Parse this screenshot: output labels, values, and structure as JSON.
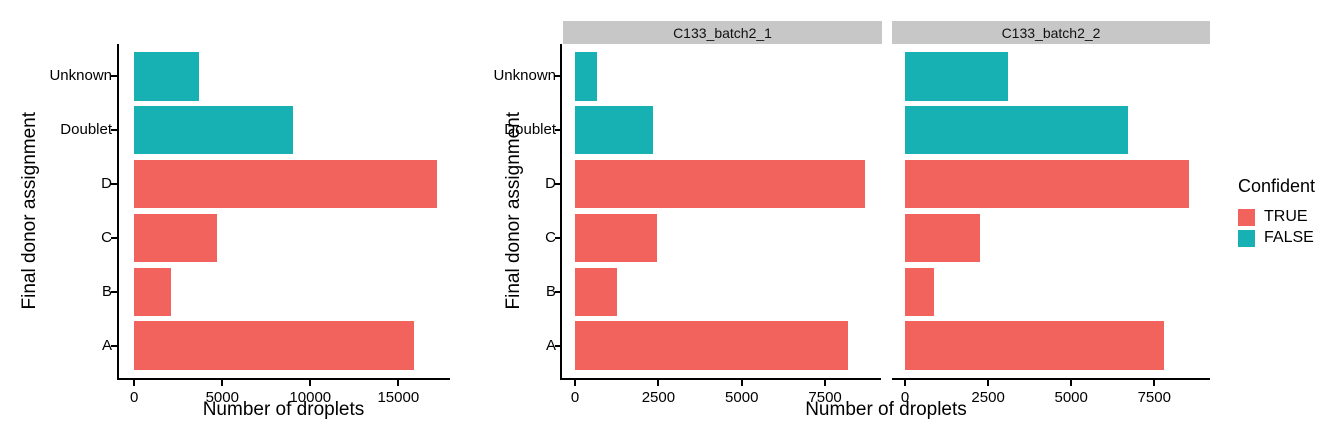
{
  "figure": {
    "y_axis_title": "Final donor assignment",
    "x_axis_title": "Number of droplets",
    "categories": [
      "Unknown",
      "Doublet",
      "D",
      "C",
      "B",
      "A"
    ],
    "confident_by_category": [
      false,
      false,
      true,
      true,
      true,
      true
    ],
    "colors": {
      "confident_true": "#F2635D",
      "confident_false": "#18B1B3",
      "strip_background": "#C7C7C7",
      "axis_line": "#000000",
      "text": "#000000",
      "background": "#FFFFFF"
    },
    "legend": {
      "title": "Confident",
      "items": [
        {
          "label": "TRUE",
          "color_key": "confident_true"
        },
        {
          "label": "FALSE",
          "color_key": "confident_false"
        }
      ]
    }
  },
  "chart_data": [
    {
      "type": "bar",
      "orientation": "horizontal",
      "panel_label": "",
      "title": "",
      "categories": [
        "Unknown",
        "Doublet",
        "D",
        "C",
        "B",
        "A"
      ],
      "values": [
        3700,
        9000,
        17200,
        4700,
        2100,
        15900
      ],
      "color_keys": [
        "confident_false",
        "confident_false",
        "confident_true",
        "confident_true",
        "confident_true",
        "confident_true"
      ],
      "xlabel": "Number of droplets",
      "ylabel": "Final donor assignment",
      "x_ticks": [
        0,
        5000,
        10000,
        15000
      ],
      "xlim": [
        0,
        17900
      ],
      "axis_zero_frac": 0.046,
      "axis_span_units": 18800,
      "grid": false,
      "legend_position": "none"
    },
    {
      "type": "bar",
      "orientation": "horizontal",
      "panel_label": "C133_batch2_1",
      "categories": [
        "Unknown",
        "Doublet",
        "D",
        "C",
        "B",
        "A"
      ],
      "values": [
        650,
        2350,
        8700,
        2450,
        1250,
        8200
      ],
      "color_keys": [
        "confident_false",
        "confident_false",
        "confident_true",
        "confident_true",
        "confident_true",
        "confident_true"
      ],
      "xlabel": "Number of droplets",
      "ylabel": "Final donor assignment",
      "x_ticks": [
        0,
        2500,
        5000,
        7500
      ],
      "xlim": [
        0,
        9100
      ],
      "axis_zero_frac": 0.041,
      "axis_span_units": 9570,
      "grid": false,
      "legend_position": "right"
    },
    {
      "type": "bar",
      "orientation": "horizontal",
      "panel_label": "C133_batch2_2",
      "categories": [
        "Unknown",
        "Doublet",
        "D",
        "C",
        "B",
        "A"
      ],
      "values": [
        3100,
        6700,
        8550,
        2250,
        870,
        7800
      ],
      "color_keys": [
        "confident_false",
        "confident_false",
        "confident_true",
        "confident_true",
        "confident_true",
        "confident_true"
      ],
      "xlabel": "Number of droplets",
      "ylabel": "Final donor assignment",
      "x_ticks": [
        0,
        2500,
        5000,
        7500
      ],
      "xlim": [
        0,
        9100
      ],
      "axis_zero_frac": 0.041,
      "axis_span_units": 9570,
      "grid": false,
      "legend_position": "right"
    }
  ]
}
